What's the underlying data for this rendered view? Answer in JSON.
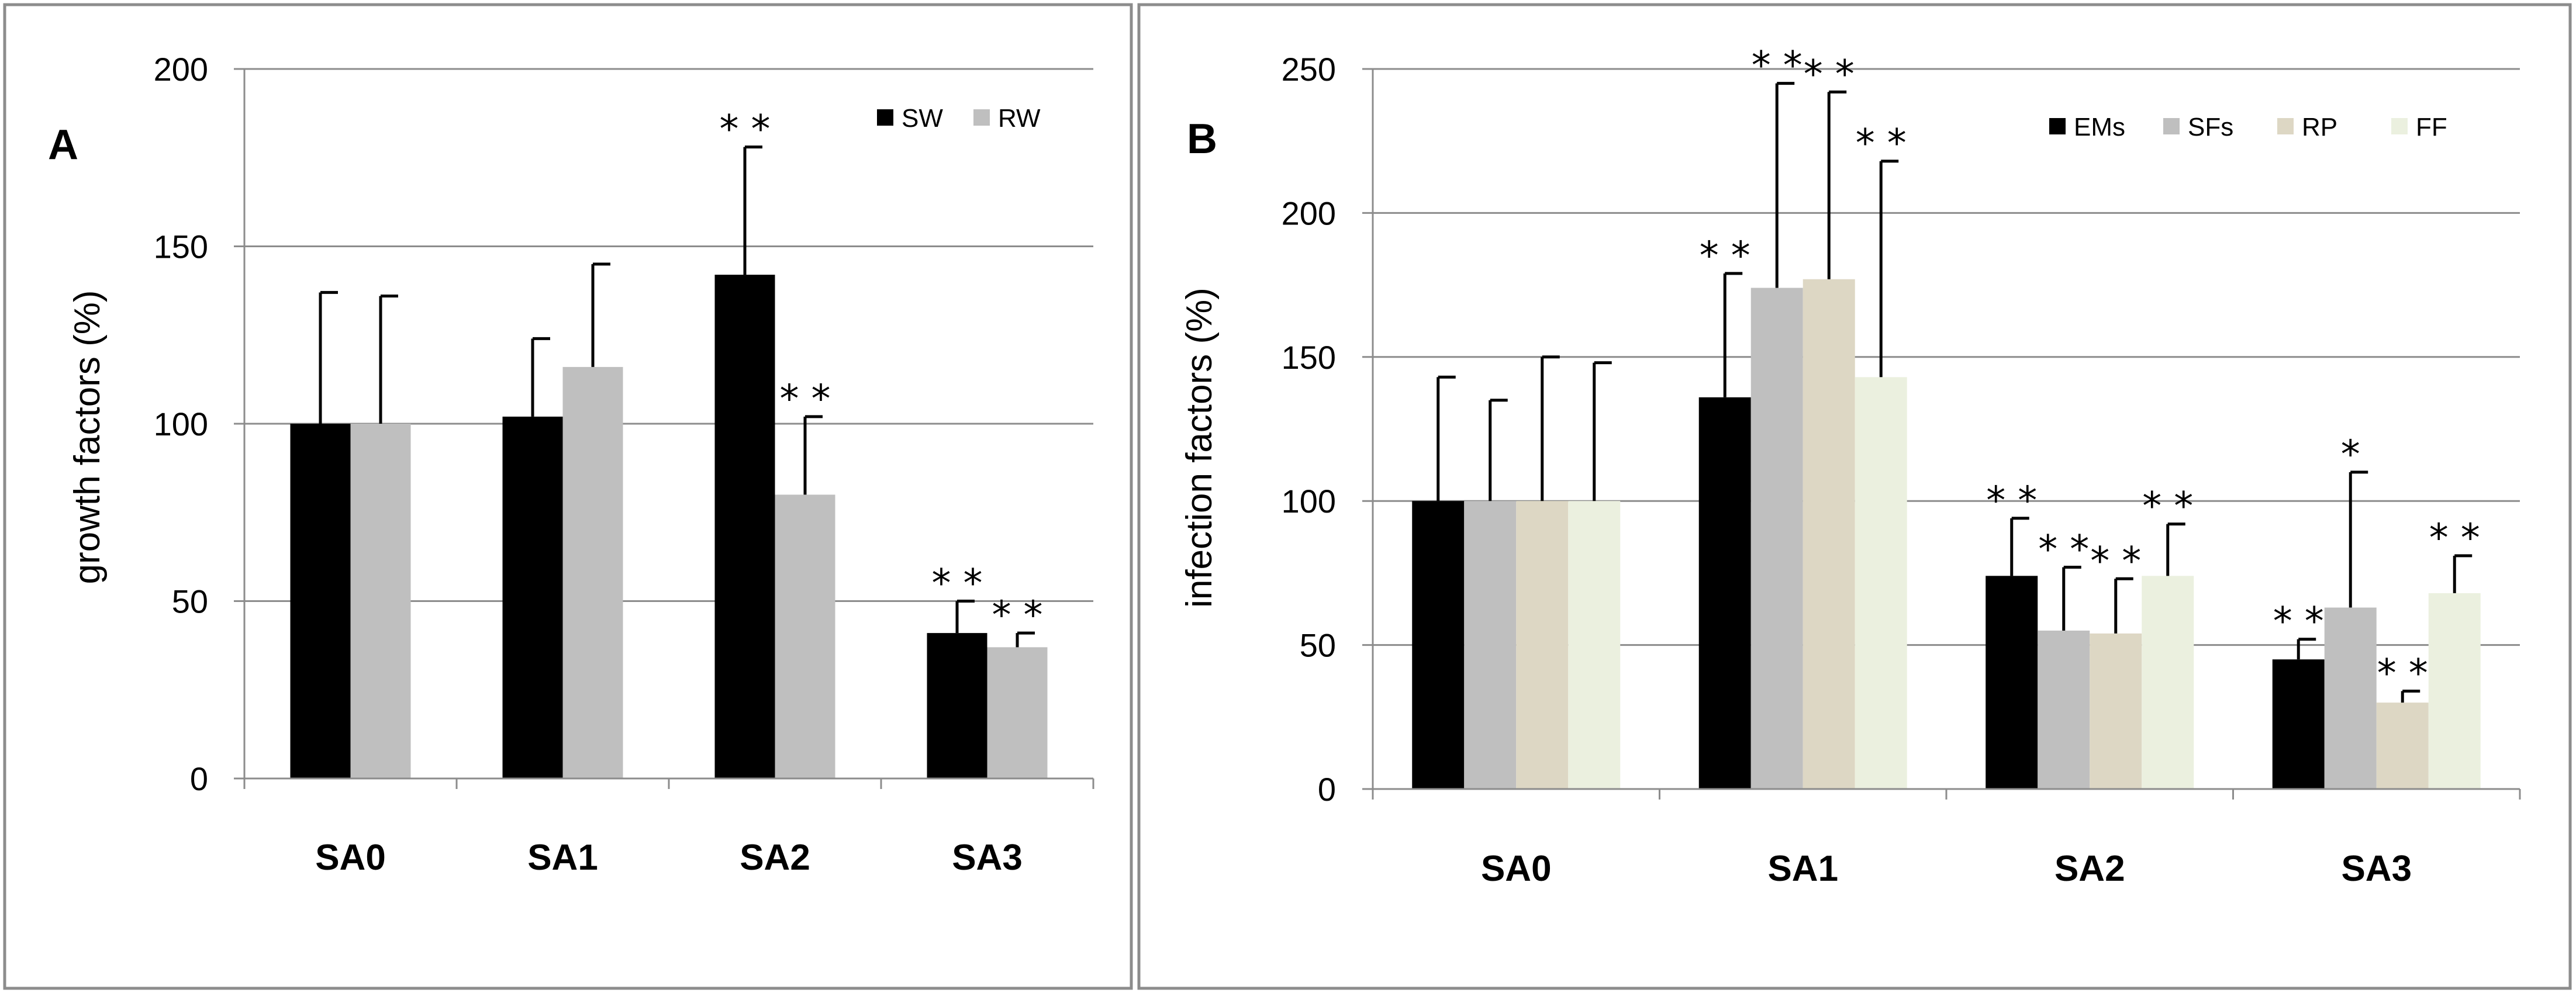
{
  "chart_data": [
    {
      "type": "bar",
      "panel_label": "A",
      "ylabel": "growth factors (%)",
      "xlabel": "",
      "ylim": [
        0,
        200
      ],
      "yticks": [
        "0",
        "50",
        "100",
        "150",
        "200"
      ],
      "categories": [
        "SA0",
        "SA1",
        "SA2",
        "SA3"
      ],
      "series": [
        {
          "name": "SW",
          "color": "#000000",
          "values": [
            100,
            102,
            142,
            41
          ],
          "errors": [
            37,
            22,
            36,
            9
          ],
          "significance": [
            "",
            "",
            "* *",
            "* *"
          ]
        },
        {
          "name": "RW",
          "color": "#BFBFBF",
          "values": [
            100,
            116,
            80,
            37
          ],
          "errors": [
            36,
            29,
            22,
            4
          ],
          "significance": [
            "",
            "",
            "* *",
            "* *"
          ]
        }
      ],
      "legend": [
        "SW",
        "RW"
      ],
      "legend_position": "top-right",
      "grid": true
    },
    {
      "type": "bar",
      "panel_label": "B",
      "ylabel": "infection factors (%)",
      "xlabel": "",
      "ylim": [
        0,
        250
      ],
      "yticks": [
        "0",
        "50",
        "100",
        "150",
        "200",
        "250"
      ],
      "categories": [
        "SA0",
        "SA1",
        "SA2",
        "SA3"
      ],
      "series": [
        {
          "name": "EMs",
          "color": "#000000",
          "values": [
            100,
            136,
            74,
            45
          ],
          "errors": [
            43,
            43,
            20,
            7
          ],
          "significance": [
            "",
            "* *",
            "* *",
            "* *"
          ]
        },
        {
          "name": "SFs",
          "color": "#BFBFBF",
          "values": [
            100,
            174,
            55,
            63
          ],
          "errors": [
            35,
            71,
            22,
            47
          ],
          "significance": [
            "",
            "* *",
            "* *",
            "*"
          ]
        },
        {
          "name": "RP",
          "color": "#DDD7C4",
          "values": [
            100,
            177,
            54,
            30
          ],
          "errors": [
            50,
            65,
            19,
            4
          ],
          "significance": [
            "",
            "* *",
            "* *",
            "* *"
          ]
        },
        {
          "name": "FF",
          "color": "#EBF0DF",
          "values": [
            100,
            143,
            74,
            68
          ],
          "errors": [
            48,
            75,
            18,
            13
          ],
          "significance": [
            "",
            "* *",
            "* *",
            "* *"
          ]
        }
      ],
      "legend": [
        "EMs",
        "SFs",
        "RP",
        "FF"
      ],
      "legend_position": "top-right",
      "grid": true
    }
  ]
}
